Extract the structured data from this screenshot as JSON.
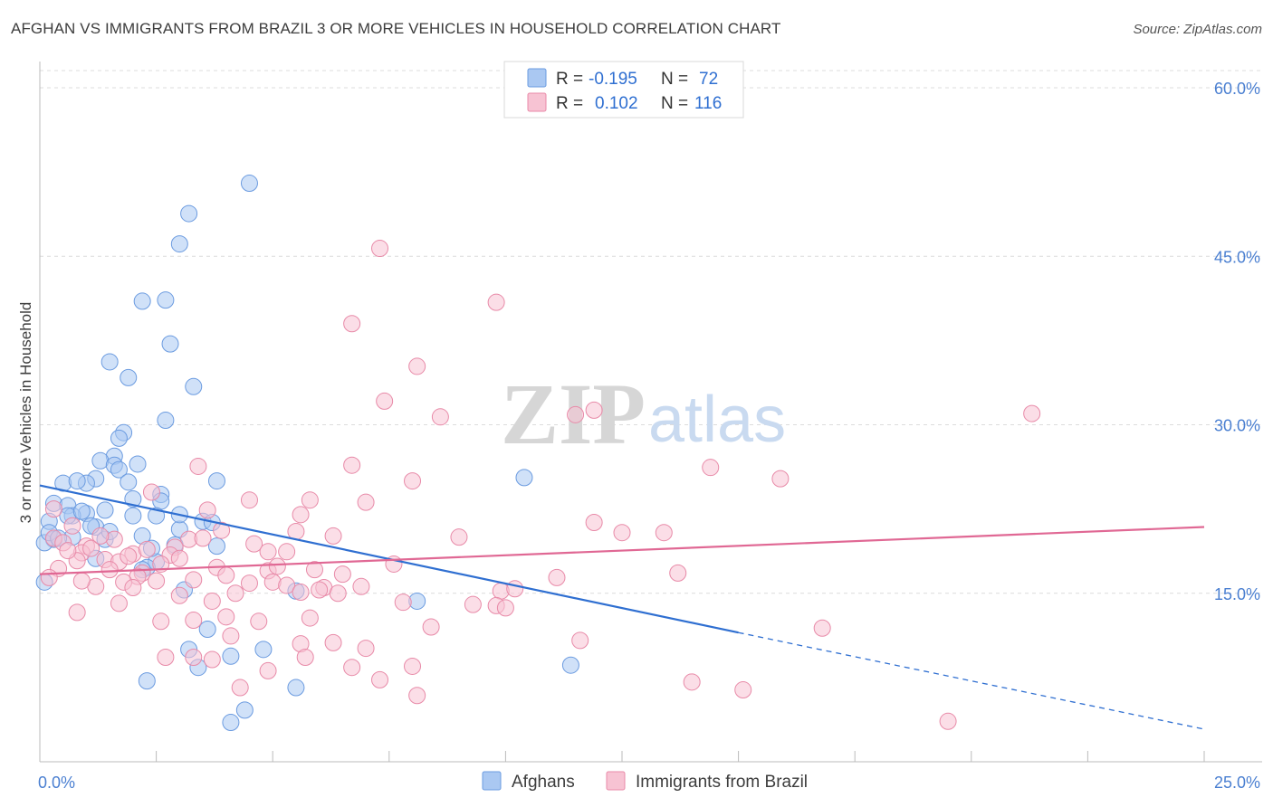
{
  "title": "AFGHAN VS IMMIGRANTS FROM BRAZIL 3 OR MORE VEHICLES IN HOUSEHOLD CORRELATION CHART",
  "source": "Source: ZipAtlas.com",
  "watermark": {
    "zip": "ZIP",
    "atlas": "atlas"
  },
  "legend": {
    "r_label": "R =",
    "n_label": "N =",
    "entries": [
      {
        "r": "-0.195",
        "n": "72",
        "color": "#aac8f2",
        "stroke": "#6b9be0"
      },
      {
        "r": "0.102",
        "n": "116",
        "color": "#f7c3d3",
        "stroke": "#e88aa8"
      }
    ]
  },
  "chart_data": {
    "type": "scatter",
    "title": "AFGHAN VS IMMIGRANTS FROM BRAZIL 3 OR MORE VEHICLES IN HOUSEHOLD CORRELATION CHART",
    "xlabel": "",
    "ylabel": "3 or more Vehicles in Household",
    "xlim": [
      0,
      25
    ],
    "ylim": [
      0,
      60
    ],
    "x_tick_labels": [
      {
        "value": 0,
        "label": "0.0%"
      },
      {
        "value": 25,
        "label": "25.0%"
      }
    ],
    "y_tick_labels": [
      {
        "value": 15,
        "label": "15.0%"
      },
      {
        "value": 30,
        "label": "30.0%"
      },
      {
        "value": 45,
        "label": "45.0%"
      },
      {
        "value": 60,
        "label": "60.0%"
      }
    ],
    "grid": true,
    "legend_position": "top-center",
    "series": [
      {
        "name": "Afghans",
        "color": "#aac8f2",
        "stroke": "#6b9be0",
        "line_color": "#2f6fd1",
        "trend": {
          "x0": 0,
          "y0": 24.6,
          "x1": 15,
          "y1": 11.5,
          "dash_to_x": 25,
          "dash_to_y": 2.9
        },
        "points": [
          [
            4.5,
            51.5
          ],
          [
            3.2,
            48.8
          ],
          [
            3.0,
            46.1
          ],
          [
            2.2,
            41.0
          ],
          [
            2.7,
            41.1
          ],
          [
            2.8,
            37.2
          ],
          [
            1.5,
            35.6
          ],
          [
            1.9,
            34.2
          ],
          [
            3.3,
            33.4
          ],
          [
            2.7,
            30.4
          ],
          [
            1.8,
            29.3
          ],
          [
            1.7,
            28.8
          ],
          [
            1.6,
            27.2
          ],
          [
            1.3,
            26.8
          ],
          [
            1.6,
            26.4
          ],
          [
            1.7,
            26.0
          ],
          [
            1.2,
            25.2
          ],
          [
            1.0,
            24.8
          ],
          [
            1.9,
            24.9
          ],
          [
            0.5,
            24.8
          ],
          [
            3.8,
            25.0
          ],
          [
            2.6,
            23.8
          ],
          [
            2.0,
            23.4
          ],
          [
            2.6,
            23.2
          ],
          [
            0.3,
            23.0
          ],
          [
            0.6,
            22.8
          ],
          [
            1.4,
            22.4
          ],
          [
            1.0,
            22.1
          ],
          [
            0.7,
            21.9
          ],
          [
            2.5,
            21.9
          ],
          [
            2.0,
            21.9
          ],
          [
            0.6,
            21.9
          ],
          [
            0.2,
            21.4
          ],
          [
            3.5,
            21.4
          ],
          [
            3.7,
            21.3
          ],
          [
            1.2,
            20.9
          ],
          [
            3.0,
            20.7
          ],
          [
            2.2,
            20.1
          ],
          [
            0.7,
            20.0
          ],
          [
            0.3,
            19.8
          ],
          [
            0.1,
            19.5
          ],
          [
            1.4,
            19.8
          ],
          [
            3.8,
            19.2
          ],
          [
            2.9,
            19.3
          ],
          [
            1.2,
            18.1
          ],
          [
            2.5,
            17.8
          ],
          [
            2.3,
            17.3
          ],
          [
            2.2,
            17.1
          ],
          [
            0.1,
            16.0
          ],
          [
            3.1,
            15.3
          ],
          [
            5.5,
            15.2
          ],
          [
            8.1,
            14.3
          ],
          [
            3.6,
            11.8
          ],
          [
            3.2,
            10.0
          ],
          [
            4.8,
            10.0
          ],
          [
            3.4,
            8.4
          ],
          [
            4.1,
            9.4
          ],
          [
            2.3,
            7.2
          ],
          [
            5.5,
            6.6
          ],
          [
            4.4,
            4.6
          ],
          [
            4.1,
            3.5
          ],
          [
            10.4,
            25.3
          ],
          [
            11.4,
            8.6
          ],
          [
            0.2,
            20.4
          ],
          [
            0.4,
            19.9
          ],
          [
            1.1,
            21.0
          ],
          [
            0.9,
            22.3
          ],
          [
            2.4,
            19.0
          ],
          [
            1.5,
            20.5
          ],
          [
            3.0,
            22.0
          ],
          [
            0.8,
            25.0
          ],
          [
            2.1,
            26.5
          ]
        ]
      },
      {
        "name": "Immigrants from Brazil",
        "color": "#f7c3d3",
        "stroke": "#e88aa8",
        "line_color": "#e06894",
        "trend": {
          "x0": 0,
          "y0": 16.7,
          "x1": 25,
          "y1": 20.9
        },
        "points": [
          [
            7.3,
            45.7
          ],
          [
            9.8,
            40.9
          ],
          [
            6.7,
            39.0
          ],
          [
            8.1,
            35.2
          ],
          [
            7.4,
            32.1
          ],
          [
            11.9,
            31.3
          ],
          [
            11.5,
            30.9
          ],
          [
            8.6,
            30.7
          ],
          [
            21.3,
            31.0
          ],
          [
            6.7,
            26.4
          ],
          [
            3.4,
            26.3
          ],
          [
            14.4,
            26.2
          ],
          [
            15.9,
            25.2
          ],
          [
            8.0,
            25.0
          ],
          [
            2.4,
            24.0
          ],
          [
            4.5,
            23.3
          ],
          [
            5.8,
            23.3
          ],
          [
            7.0,
            23.1
          ],
          [
            3.6,
            22.4
          ],
          [
            5.6,
            22.0
          ],
          [
            11.9,
            21.3
          ],
          [
            3.9,
            20.6
          ],
          [
            5.5,
            20.5
          ],
          [
            12.5,
            20.4
          ],
          [
            13.4,
            20.4
          ],
          [
            6.3,
            20.1
          ],
          [
            9.0,
            20.0
          ],
          [
            0.3,
            19.9
          ],
          [
            1.6,
            19.8
          ],
          [
            3.2,
            19.8
          ],
          [
            0.5,
            19.5
          ],
          [
            4.6,
            19.4
          ],
          [
            1.0,
            19.2
          ],
          [
            2.9,
            19.1
          ],
          [
            0.9,
            18.6
          ],
          [
            2.0,
            18.5
          ],
          [
            4.9,
            18.7
          ],
          [
            5.3,
            18.7
          ],
          [
            2.8,
            18.4
          ],
          [
            3.0,
            18.1
          ],
          [
            1.4,
            18.0
          ],
          [
            1.7,
            17.8
          ],
          [
            0.8,
            17.9
          ],
          [
            2.6,
            17.6
          ],
          [
            7.6,
            17.6
          ],
          [
            4.9,
            17.0
          ],
          [
            5.1,
            17.4
          ],
          [
            0.4,
            17.2
          ],
          [
            1.5,
            17.1
          ],
          [
            2.2,
            16.8
          ],
          [
            6.5,
            16.7
          ],
          [
            2.1,
            16.5
          ],
          [
            13.7,
            16.8
          ],
          [
            1.8,
            16.0
          ],
          [
            5.0,
            16.0
          ],
          [
            11.1,
            16.4
          ],
          [
            3.3,
            16.2
          ],
          [
            4.5,
            15.9
          ],
          [
            6.1,
            15.5
          ],
          [
            1.2,
            15.6
          ],
          [
            6.9,
            15.6
          ],
          [
            9.9,
            15.2
          ],
          [
            6.0,
            15.3
          ],
          [
            2.0,
            15.5
          ],
          [
            5.3,
            15.7
          ],
          [
            4.2,
            15.0
          ],
          [
            5.6,
            15.1
          ],
          [
            3.0,
            14.8
          ],
          [
            10.2,
            15.4
          ],
          [
            1.7,
            14.1
          ],
          [
            3.7,
            14.3
          ],
          [
            9.8,
            13.9
          ],
          [
            10.0,
            13.7
          ],
          [
            0.8,
            13.3
          ],
          [
            3.3,
            12.6
          ],
          [
            4.0,
            12.9
          ],
          [
            5.8,
            12.8
          ],
          [
            2.6,
            12.5
          ],
          [
            4.7,
            12.5
          ],
          [
            8.4,
            12.0
          ],
          [
            4.1,
            11.2
          ],
          [
            5.6,
            10.5
          ],
          [
            6.3,
            10.6
          ],
          [
            7.0,
            10.1
          ],
          [
            11.6,
            10.8
          ],
          [
            3.3,
            9.3
          ],
          [
            3.7,
            9.1
          ],
          [
            5.7,
            9.3
          ],
          [
            2.7,
            9.3
          ],
          [
            6.7,
            8.4
          ],
          [
            4.9,
            8.1
          ],
          [
            8.0,
            8.5
          ],
          [
            7.3,
            7.3
          ],
          [
            4.3,
            6.6
          ],
          [
            14.0,
            7.1
          ],
          [
            15.1,
            6.4
          ],
          [
            8.1,
            5.9
          ],
          [
            19.5,
            3.6
          ],
          [
            16.8,
            11.9
          ],
          [
            0.2,
            16.4
          ],
          [
            0.6,
            18.8
          ],
          [
            1.1,
            19.0
          ],
          [
            2.5,
            16.1
          ],
          [
            3.8,
            17.3
          ],
          [
            0.7,
            21.0
          ],
          [
            0.3,
            22.5
          ],
          [
            1.3,
            20.1
          ],
          [
            2.3,
            18.9
          ],
          [
            4.0,
            16.6
          ],
          [
            5.9,
            17.1
          ],
          [
            6.4,
            15.0
          ],
          [
            0.9,
            16.1
          ],
          [
            1.9,
            18.3
          ],
          [
            3.5,
            19.9
          ],
          [
            7.8,
            14.2
          ],
          [
            9.3,
            14.0
          ]
        ]
      }
    ]
  },
  "bottom_legend": [
    {
      "name": "Afghans",
      "color": "#aac8f2",
      "stroke": "#6b9be0"
    },
    {
      "name": "Immigrants from Brazil",
      "color": "#f7c3d3",
      "stroke": "#e88aa8"
    }
  ]
}
